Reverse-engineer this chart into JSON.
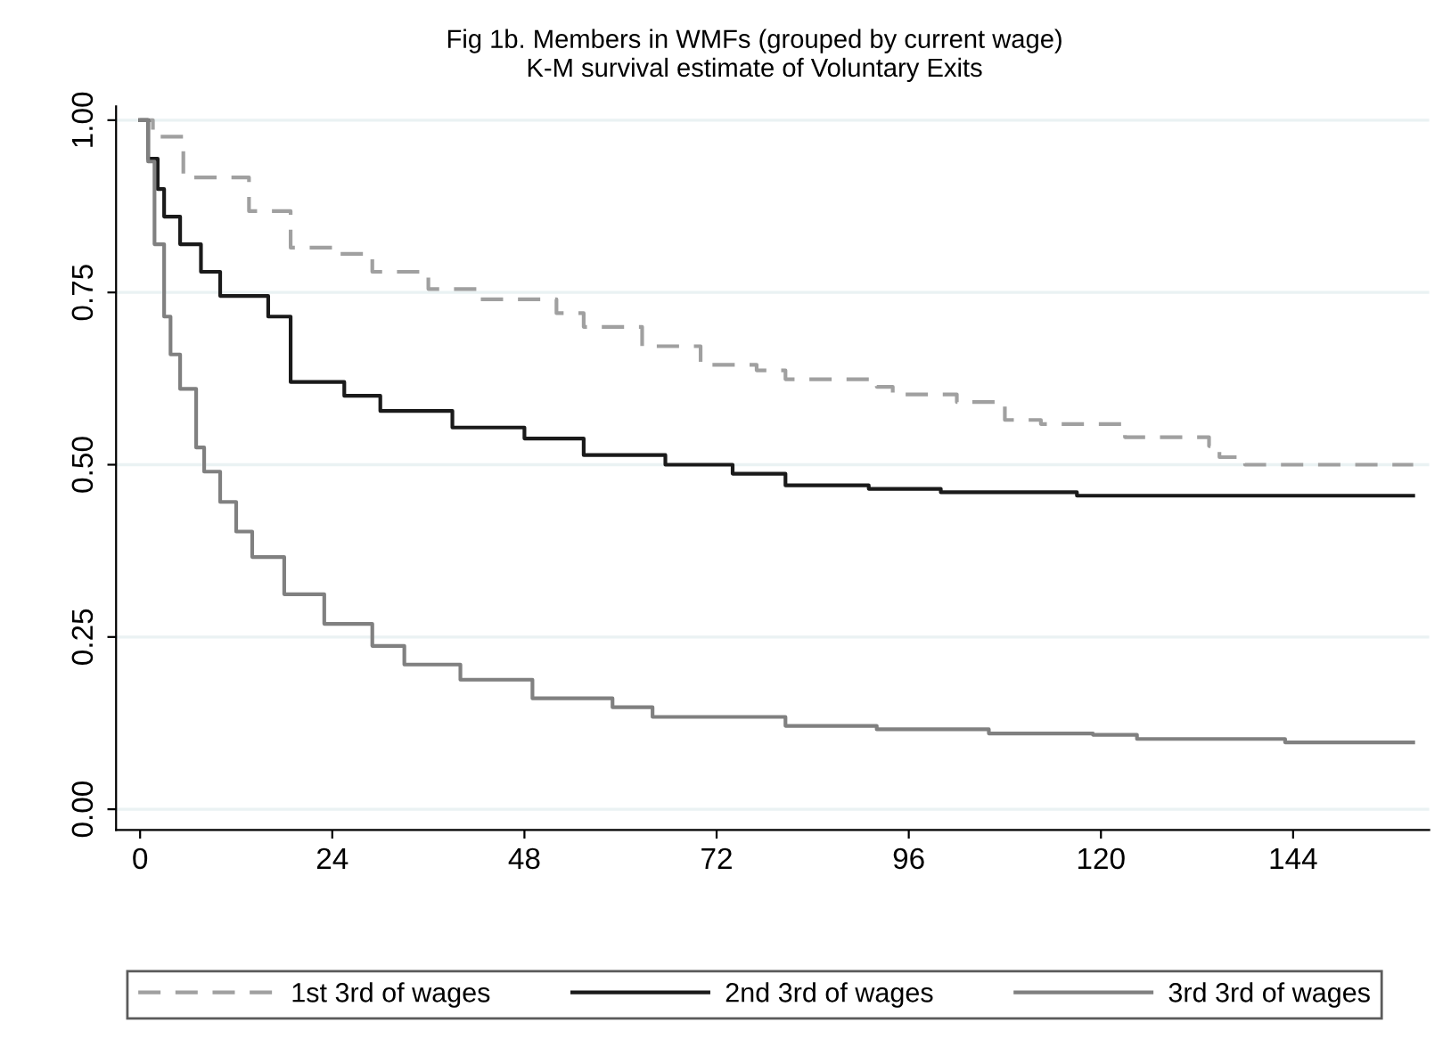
{
  "chart_data": {
    "type": "step",
    "title": "Fig 1b. Members in WMFs (grouped by current wage)",
    "subtitle": "K-M survival estimate of Voluntary Exits",
    "xlim": [
      -3,
      161
    ],
    "ylim": [
      -0.03,
      1.02
    ],
    "xticks": [
      0,
      24,
      48,
      72,
      96,
      120,
      144
    ],
    "yticks": [
      {
        "value": 0,
        "label": "0.00"
      },
      {
        "value": 0.25,
        "label": "0.25"
      },
      {
        "value": 0.5,
        "label": "0.50"
      },
      {
        "value": 0.75,
        "label": "0.75"
      },
      {
        "value": 1,
        "label": "1.00"
      }
    ],
    "grid": "y",
    "legend": "bottom",
    "marker": "none",
    "series": [
      {
        "name": "1st 3rd of wages",
        "color": "#a0a0a0",
        "line_style": "dashed",
        "x": [
          0,
          1.6,
          5.4,
          13.6,
          18.8,
          24,
          29,
          36,
          42,
          52,
          55.4,
          62.7,
          70,
          77,
          80.6,
          92,
          94,
          102,
          108,
          112.5,
          123,
          133.5,
          134.8,
          138,
          159
        ],
        "values": [
          1,
          0.976,
          0.917,
          0.868,
          0.815,
          0.806,
          0.78,
          0.755,
          0.74,
          0.72,
          0.7,
          0.672,
          0.645,
          0.637,
          0.624,
          0.613,
          0.602,
          0.591,
          0.565,
          0.559,
          0.54,
          0.527,
          0.511,
          0.5,
          0.5
        ]
      },
      {
        "name": "2nd 3rd of wages",
        "color": "#1a1a1a",
        "line_style": "solid",
        "x": [
          0,
          1,
          2.2,
          3,
          5,
          7.6,
          10,
          16,
          18.8,
          25.5,
          30,
          39,
          48,
          55.4,
          65.6,
          74,
          80.6,
          91,
          100,
          117,
          159
        ],
        "values": [
          1,
          0.944,
          0.9,
          0.86,
          0.82,
          0.78,
          0.745,
          0.715,
          0.62,
          0.6,
          0.578,
          0.554,
          0.538,
          0.514,
          0.5,
          0.487,
          0.47,
          0.465,
          0.46,
          0.455,
          0.455
        ]
      },
      {
        "name": "3rd 3rd of wages",
        "color": "#808080",
        "line_style": "solid",
        "x": [
          0,
          1,
          1.8,
          3,
          3.8,
          5,
          7,
          8,
          10,
          12,
          14,
          18,
          23,
          29,
          33,
          40,
          49,
          59,
          64,
          80.6,
          92,
          106,
          119,
          124.5,
          143,
          159
        ],
        "values": [
          1,
          0.94,
          0.82,
          0.715,
          0.66,
          0.61,
          0.525,
          0.49,
          0.446,
          0.403,
          0.366,
          0.312,
          0.269,
          0.237,
          0.21,
          0.188,
          0.161,
          0.148,
          0.134,
          0.121,
          0.116,
          0.11,
          0.108,
          0.102,
          0.097,
          0.097
        ]
      }
    ]
  }
}
